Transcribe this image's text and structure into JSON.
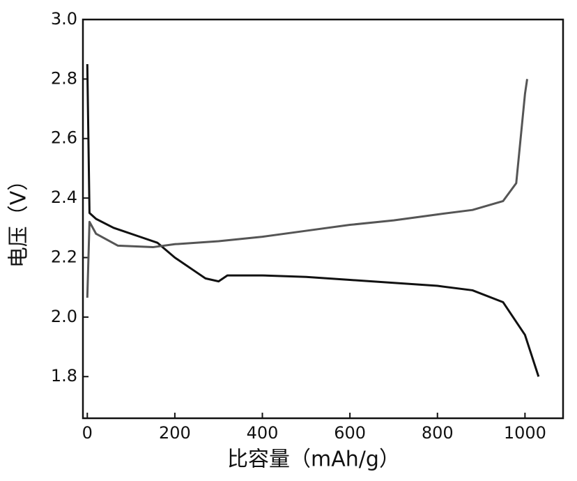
{
  "chart_data": {
    "type": "line",
    "x_label": "比容量（mAh/g）",
    "y_label": "电压（V）",
    "xlim": [
      -10,
      1087
    ],
    "xticks": [
      0,
      200,
      400,
      600,
      800,
      1000
    ],
    "ylim": [
      1.66,
      3.0
    ],
    "yticks": [
      {
        "value": 1.8,
        "label": "1.8"
      },
      {
        "value": 2.0,
        "label": "2.0"
      },
      2.2,
      2.4,
      2.6,
      2.8,
      {
        "value": 3.0,
        "label": "3.0"
      }
    ],
    "series": [
      {
        "color": "#111111",
        "x": [
          0,
          5,
          20,
          60,
          80,
          120,
          160,
          200,
          240,
          270,
          300,
          320,
          400,
          500,
          600,
          700,
          800,
          880,
          950,
          1000,
          1031
        ],
        "values": [
          2.85,
          2.35,
          2.33,
          2.3,
          2.29,
          2.27,
          2.25,
          2.2,
          2.16,
          2.13,
          2.12,
          2.14,
          2.14,
          2.135,
          2.125,
          2.115,
          2.105,
          2.09,
          2.05,
          1.94,
          1.8
        ]
      },
      {
        "color": "#555555",
        "x": [
          0,
          5,
          20,
          70,
          150,
          200,
          300,
          400,
          500,
          600,
          700,
          800,
          880,
          950,
          980,
          1000,
          1005
        ],
        "values": [
          2.065,
          2.32,
          2.28,
          2.24,
          2.235,
          2.245,
          2.255,
          2.27,
          2.29,
          2.31,
          2.325,
          2.345,
          2.36,
          2.39,
          2.45,
          2.75,
          2.8
        ]
      }
    ]
  }
}
